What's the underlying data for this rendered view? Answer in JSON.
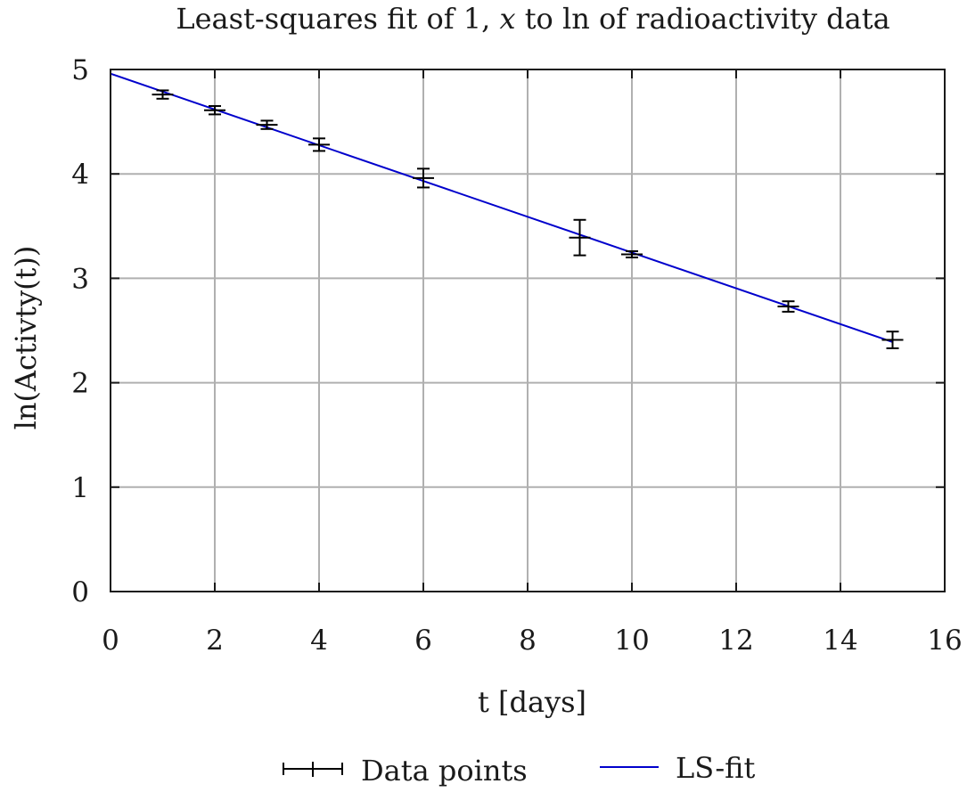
{
  "chart_data": {
    "type": "scatter",
    "title_text": "Least-squares fit of 1,",
    "title_var": "x",
    "title_tail": "to ln of radioactivity data",
    "xlabel": "t [days]",
    "ylabel": "ln(Activty(t))",
    "xlim": [
      0,
      16
    ],
    "ylim": [
      0,
      5
    ],
    "xticks": [
      "0",
      "2",
      "4",
      "6",
      "8",
      "10",
      "12",
      "14",
      "16"
    ],
    "yticks": [
      "0",
      "1",
      "2",
      "3",
      "4",
      "5"
    ],
    "grid": true,
    "legend_position": "bottom",
    "series": [
      {
        "name": "Data points",
        "kind": "errorbar",
        "color": "#000000",
        "x": [
          1,
          2,
          3,
          4,
          6,
          9,
          10,
          13,
          15
        ],
        "y": [
          4.76,
          4.61,
          4.47,
          4.28,
          3.96,
          3.39,
          3.23,
          2.73,
          2.41
        ],
        "err": [
          0.04,
          0.04,
          0.04,
          0.06,
          0.09,
          0.17,
          0.03,
          0.05,
          0.08
        ]
      },
      {
        "name": "LS-fit",
        "kind": "line",
        "color": "#0000cc",
        "x": [
          0,
          15
        ],
        "y": [
          4.96,
          2.39
        ]
      }
    ]
  }
}
